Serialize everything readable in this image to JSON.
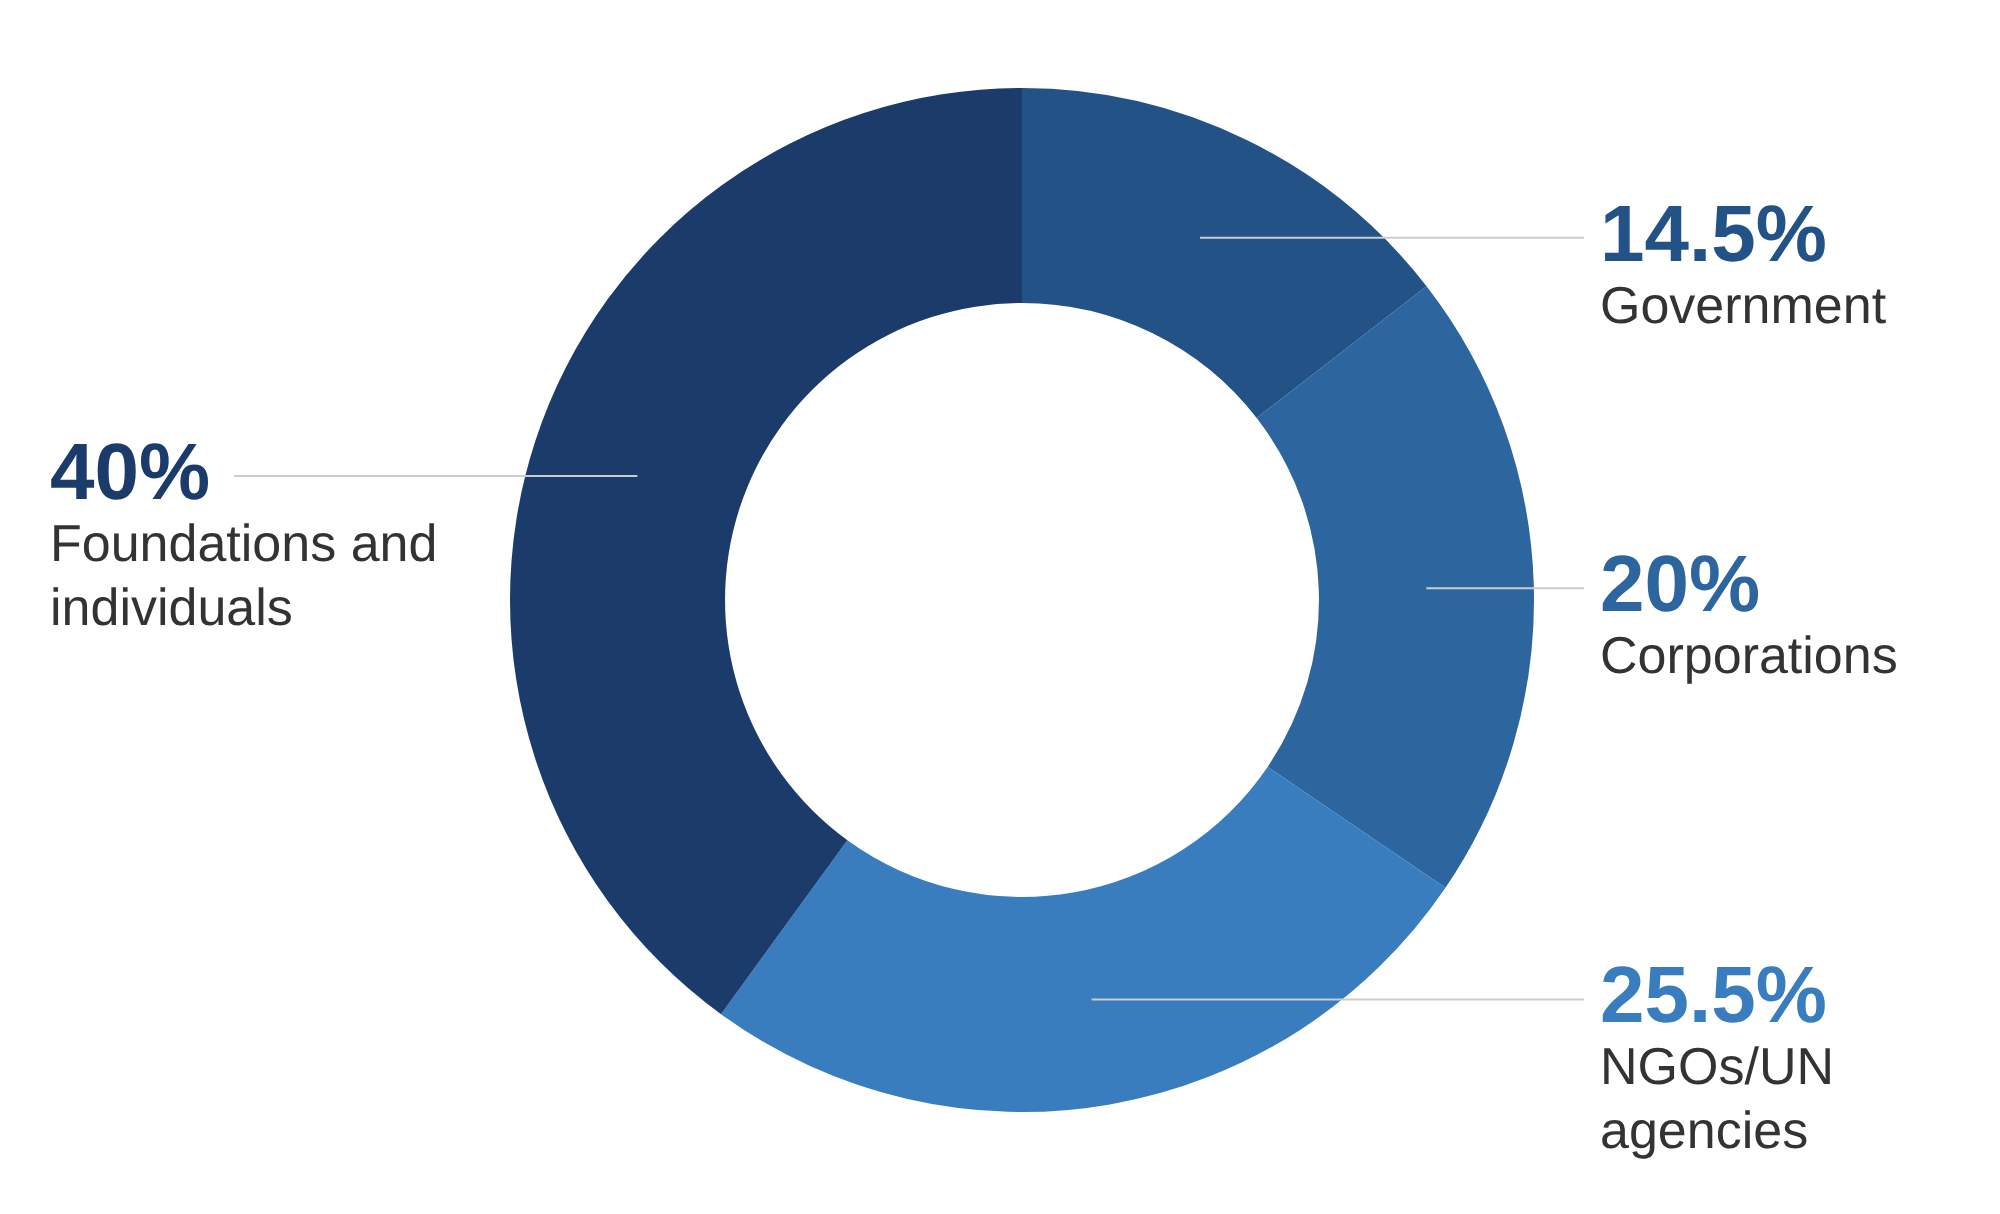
{
  "chart_data": {
    "type": "donut",
    "categories": [
      "Government",
      "Corporations",
      "NGOs/UN agencies",
      "Foundations and individuals"
    ],
    "values": [
      14.5,
      20,
      25.5,
      40
    ],
    "colors": [
      "#235386",
      "#2d659e",
      "#397dbf",
      "#1b3c6b"
    ],
    "value_labels": [
      "14.5%",
      "20%",
      "25.5%",
      "40%"
    ],
    "legend": false
  }
}
